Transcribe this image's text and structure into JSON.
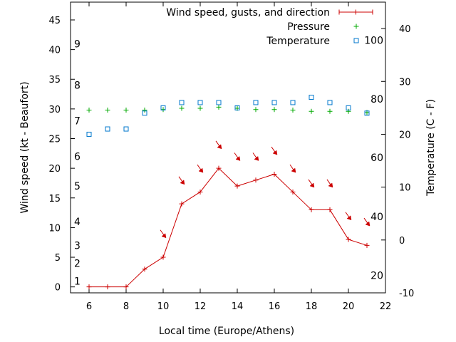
{
  "chart_data": {
    "type": "line",
    "title": "",
    "xlabel": "Local time (Europe/Athens)",
    "ylabel_left": "Wind speed (kt - Beaufort)",
    "ylabel_right": "Temperature (C - F)",
    "xlim": [
      5,
      22
    ],
    "ylim_left": [
      -1,
      48
    ],
    "ylim_right": [
      -10,
      45
    ],
    "x_ticks": [
      6,
      8,
      10,
      12,
      14,
      16,
      18,
      20,
      22
    ],
    "y_left_ticks": [
      0,
      5,
      10,
      15,
      20,
      25,
      30,
      35,
      40,
      45
    ],
    "y_right_celsius_ticks": [
      -10,
      0,
      10,
      20,
      30,
      40
    ],
    "beaufort_scale": [
      {
        "label": "1",
        "kt": 1
      },
      {
        "label": "2",
        "kt": 4
      },
      {
        "label": "3",
        "kt": 7
      },
      {
        "label": "4",
        "kt": 11
      },
      {
        "label": "5",
        "kt": 17
      },
      {
        "label": "6",
        "kt": 22
      },
      {
        "label": "7",
        "kt": 28
      },
      {
        "label": "8",
        "kt": 34
      },
      {
        "label": "9",
        "kt": 41
      }
    ],
    "fahrenheit_scale": [
      {
        "label": "20",
        "celsius": -6.7
      },
      {
        "label": "40",
        "celsius": 4.4
      },
      {
        "label": "60",
        "celsius": 15.6
      },
      {
        "label": "80",
        "celsius": 26.7
      },
      {
        "label": "100",
        "celsius": 37.8
      }
    ],
    "series": [
      {
        "name": "Wind speed, gusts, and direction",
        "color": "#cc0000",
        "x": [
          6,
          7,
          8,
          9,
          10,
          11,
          12,
          13,
          14,
          15,
          16,
          17,
          18,
          19,
          20,
          21
        ],
        "values": [
          0,
          0,
          0,
          3,
          5,
          14,
          16,
          20,
          17,
          18,
          19,
          16,
          13,
          13,
          8,
          7
        ]
      },
      {
        "name": "Pressure",
        "color": "#00aa00",
        "x": [
          6,
          7,
          8,
          9,
          10,
          11,
          12,
          13,
          14,
          15,
          16,
          17,
          18,
          19,
          20,
          21
        ],
        "values": [
          29.8,
          29.8,
          29.8,
          29.8,
          29.9,
          30.1,
          30.1,
          30.3,
          30.1,
          29.9,
          29.9,
          29.8,
          29.6,
          29.6,
          29.6,
          29.4
        ]
      },
      {
        "name": "Temperature",
        "color": "#0077cc",
        "x": [
          6,
          7,
          8,
          9,
          10,
          11,
          12,
          13,
          14,
          15,
          16,
          17,
          18,
          19,
          20,
          21
        ],
        "values": [
          20,
          21,
          21,
          24,
          25,
          26,
          26,
          26,
          25,
          26,
          26,
          26,
          27,
          26,
          25,
          24
        ]
      }
    ],
    "wind_direction_markers": {
      "color": "#cc0000",
      "items": [
        {
          "x": 10,
          "y_kt": 9
        },
        {
          "x": 11,
          "y_kt": 18
        },
        {
          "x": 12,
          "y_kt": 20
        },
        {
          "x": 13,
          "y_kt": 24
        },
        {
          "x": 14,
          "y_kt": 22
        },
        {
          "x": 15,
          "y_kt": 22
        },
        {
          "x": 16,
          "y_kt": 23
        },
        {
          "x": 17,
          "y_kt": 20
        },
        {
          "x": 18,
          "y_kt": 17.5
        },
        {
          "x": 19,
          "y_kt": 17.5
        },
        {
          "x": 20,
          "y_kt": 12
        },
        {
          "x": 21,
          "y_kt": 11
        }
      ]
    },
    "legend_placement": "top-right",
    "grid": false
  }
}
